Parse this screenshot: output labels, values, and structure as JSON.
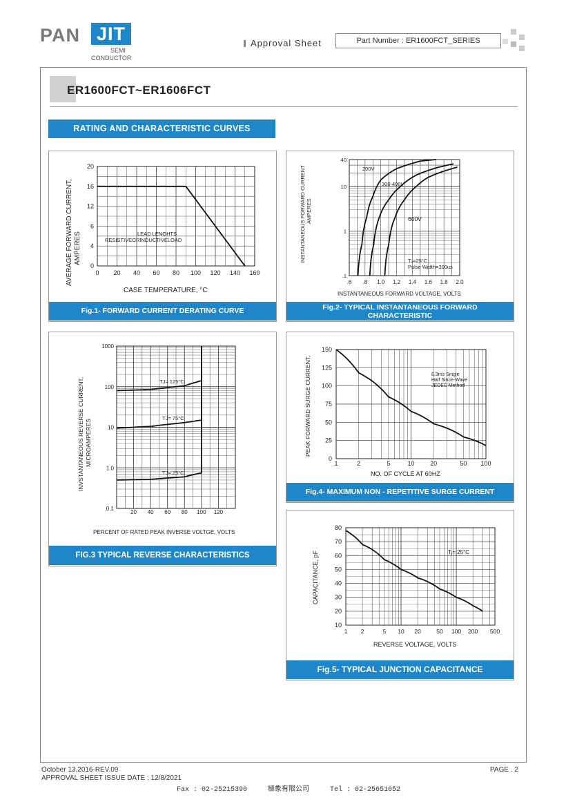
{
  "header": {
    "logo_pan": "PAN",
    "logo_jit": "JIT",
    "logo_semi": "SEMI",
    "logo_conductor": "CONDUCTOR",
    "approval": "Approval  Sheet",
    "part_number": "Part Number : ER1600FCT_SERIES"
  },
  "title": "ER1600FCT~ER1606FCT",
  "section": "RATING AND CHARACTERISTIC CURVES",
  "fig1": {
    "caption": "Fig.1- FORWARD CURRENT DERATING CURVE",
    "ylabel1": "AVERAGE FORWARD CURRENT,",
    "ylabel2": "AMPERES",
    "xlabel": "CASE TEMPERATURE, °C",
    "note1": "LEAD LENGHTS",
    "note2": "RESISTIVEORINDUCTIVELOAD",
    "xticks": [
      "0",
      "20",
      "40",
      "60",
      "80",
      "100",
      "120",
      "140",
      "160"
    ],
    "yticks": [
      "0",
      "4",
      "6",
      "12",
      "16",
      "20"
    ]
  },
  "fig2": {
    "caption1": "Fig.2- TYPICAL INSTANTANEOUS FORWARD",
    "caption2": "CHARACTERISTIC",
    "ylabel1": "INSTANTANEOUS FORWARD CURRENT",
    "ylabel2": "AMPERES",
    "xlabel": "INSTANTANEOUS FORWARD VOLTAGE, VOLTS",
    "xticks": [
      ".6",
      ".8",
      "1.0",
      "1.2",
      "1.4",
      "1.6",
      "1.8",
      "2.0"
    ],
    "yticks": [
      ".1",
      "1",
      "10",
      "40"
    ],
    "curve_labels": [
      "200V",
      "300-400V",
      "600V"
    ],
    "note1": "T₁=25°C",
    "note2": "Pulse Width=300us"
  },
  "fig3": {
    "caption": "FIG.3 TYPICAL REVERSE CHARACTERISTICS",
    "ylabel1": "INVSTANTANEOUS REVERSE CURRENT,",
    "ylabel2": "MICROAMPERES",
    "xlabel": "PERCENT OF RATED PEAK INVERSE VOLTGE, VOLTS",
    "xticks": [
      "20",
      "40",
      "60",
      "80",
      "100",
      "120"
    ],
    "yticks": [
      "0.1",
      "1.0",
      "10",
      "100",
      "1000"
    ],
    "curve_labels": [
      "TJ= 125°C",
      "TJ= 75°C",
      "TJ= 25°C"
    ]
  },
  "fig4": {
    "caption": "Fig.4- MAXIMUM NON - REPETITIVE SURGE CURRENT",
    "ylabel": "PEAK FORWARD SURGE CURRENT,",
    "xlabel": "NO. OF CYCLE AT 60HZ",
    "xticks": [
      "1",
      "2",
      "5",
      "10",
      "20",
      "50",
      "100"
    ],
    "yticks": [
      "0",
      "25",
      "50",
      "75",
      "100",
      "125",
      "150"
    ],
    "note1": "8.3ms Single",
    "note2": "Half Since-Wave",
    "note3": "JEDEC Method"
  },
  "fig5": {
    "caption": "Fig.5- TYPICAL JUNCTION CAPACITANCE",
    "ylabel": "CAPACITANCE, pF",
    "xlabel": "REVERSE VOLTAGE, VOLTS",
    "xticks": [
      "1",
      "2",
      "5",
      "10",
      "20",
      "50",
      "100",
      "200",
      "500"
    ],
    "yticks": [
      "10",
      "20",
      "30",
      "40",
      "50",
      "60",
      "70",
      "80"
    ],
    "note": "Tⱼ= 25°C"
  },
  "chart_data": [
    {
      "type": "line",
      "title": "Fig.1- FORWARD CURRENT DERATING CURVE",
      "xlabel": "CASE TEMPERATURE, °C",
      "ylabel": "AVERAGE FORWARD CURRENT, AMPERES",
      "xlim": [
        0,
        160
      ],
      "ylim": [
        0,
        20
      ],
      "grid": true,
      "series": [
        {
          "x": [
            0,
            90,
            150
          ],
          "y": [
            16,
            16,
            0
          ]
        }
      ]
    },
    {
      "type": "line",
      "title": "Fig.2- TYPICAL INSTANTANEOUS FORWARD CHARACTERISTIC",
      "xlabel": "INSTANTANEOUS FORWARD VOLTAGE, VOLTS",
      "ylabel": "INSTANTANEOUS FORWARD CURRENT AMPERES",
      "xlim": [
        0.6,
        2.0
      ],
      "ylim": [
        0.1,
        40
      ],
      "yscale": "log",
      "grid": true,
      "series": [
        {
          "name": "200V",
          "x": [
            0.71,
            0.76,
            0.82,
            0.9,
            1.0,
            1.2,
            1.5,
            1.7
          ],
          "y": [
            0.1,
            0.5,
            2,
            6,
            14,
            25,
            37,
            40
          ]
        },
        {
          "name": "300-400V",
          "x": [
            0.86,
            0.91,
            0.98,
            1.1,
            1.25,
            1.45,
            1.7,
            1.92
          ],
          "y": [
            0.1,
            0.5,
            2,
            5,
            10,
            18,
            26,
            32
          ]
        },
        {
          "name": "600V",
          "x": [
            1.05,
            1.1,
            1.18,
            1.3,
            1.45,
            1.6,
            1.8,
            1.97
          ],
          "y": [
            0.1,
            0.5,
            2,
            5,
            10,
            16,
            22,
            27
          ]
        }
      ]
    },
    {
      "type": "line",
      "title": "FIG.3 TYPICAL REVERSE CHARACTERISTICS",
      "xlabel": "PERCENT OF RATED PEAK INVERSE VOLTGE, VOLTS",
      "ylabel": "INVSTANTANEOUS REVERSE CURRENT, MICROAMPERES",
      "xlim": [
        0,
        140
      ],
      "ylim": [
        0.1,
        1000
      ],
      "yscale": "log",
      "grid": true,
      "series": [
        {
          "name": "TJ= 125°C",
          "x": [
            0,
            40,
            80,
            100,
            100
          ],
          "y": [
            80,
            85,
            105,
            140,
            1000
          ]
        },
        {
          "name": "TJ= 75°C",
          "x": [
            0,
            40,
            80,
            100,
            100
          ],
          "y": [
            9.5,
            10.5,
            13,
            15,
            1000
          ]
        },
        {
          "name": "TJ= 25°C",
          "x": [
            0,
            40,
            80,
            100,
            100
          ],
          "y": [
            0.5,
            0.52,
            0.6,
            0.75,
            1000
          ]
        }
      ]
    },
    {
      "type": "line",
      "title": "Fig.4- MAXIMUM NON - REPETITIVE SURGE CURRENT",
      "xlabel": "NO. OF CYCLE AT 60HZ",
      "ylabel": "PEAK FORWARD SURGE CURRENT,",
      "xlim": [
        1,
        100
      ],
      "ylim": [
        0,
        150
      ],
      "xscale": "log",
      "grid": true,
      "series": [
        {
          "x": [
            1,
            2,
            5,
            10,
            20,
            50,
            100
          ],
          "y": [
            150,
            118,
            85,
            65,
            48,
            30,
            18
          ]
        }
      ]
    },
    {
      "type": "line",
      "title": "Fig.5- TYPICAL JUNCTION CAPACITANCE",
      "xlabel": "REVERSE VOLTAGE, VOLTS",
      "ylabel": "CAPACITANCE, pF",
      "xlim": [
        1,
        500
      ],
      "ylim": [
        10,
        80
      ],
      "xscale": "log",
      "grid": true,
      "series": [
        {
          "x": [
            1,
            2,
            5,
            10,
            20,
            50,
            100,
            200,
            300
          ],
          "y": [
            78,
            68,
            57,
            50,
            44,
            36,
            30,
            24,
            20
          ]
        }
      ]
    }
  ],
  "footer": {
    "date": "October 13,2016-REV.09",
    "issue": "APPROVAL SHEET ISSUE DATE : 12/8/2021",
    "page": "PAGE . 2",
    "contact": "Fax : 02-25215390     極象有限公司     Tel : 02-25651052"
  },
  "colors": {
    "accent": "#1f86c9",
    "grid": "#444444"
  }
}
